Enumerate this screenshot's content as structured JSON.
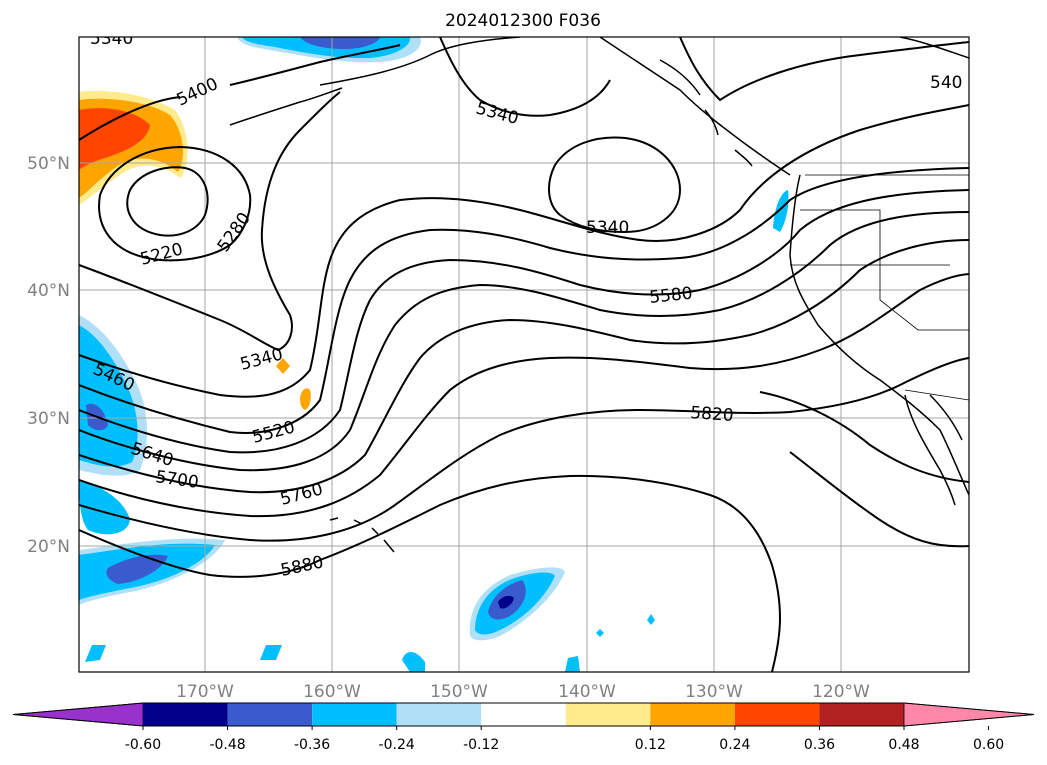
{
  "title": "2024012300 F036",
  "lat_labels": [
    "50°N",
    "40°N",
    "30°N",
    "20°N"
  ],
  "lon_labels": [
    "170°W",
    "160°W",
    "150°W",
    "140°W",
    "130°W",
    "120°W"
  ],
  "contour_labels": [
    "5340",
    "5400",
    "5220",
    "5280",
    "5340",
    "5460",
    "5520",
    "5640",
    "5700",
    "5760",
    "5880",
    "5340",
    "5580",
    "5820",
    "540",
    "5340"
  ],
  "colorbar": {
    "colors": [
      "#9932cc",
      "#00008b",
      "#3a5bcd",
      "#00bfff",
      "#b0e0f8",
      "#ffffff",
      "#ffeb8c",
      "#ffa500",
      "#ff4500",
      "#b22222",
      "#ff88aa"
    ],
    "ticks": [
      "-0.60",
      "-0.48",
      "-0.36",
      "-0.24",
      "-0.12",
      "0.12",
      "0.24",
      "0.36",
      "0.48",
      "0.60"
    ]
  }
}
